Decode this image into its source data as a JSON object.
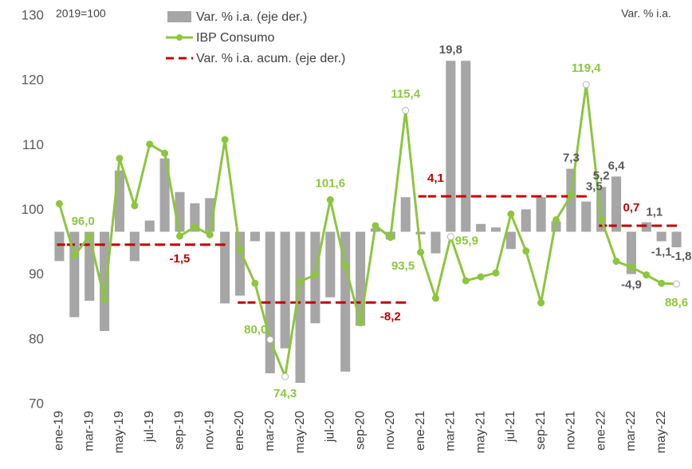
{
  "chart_data": {
    "type": "combo",
    "subtitle": "2019=100",
    "y2_title": "Var. % i.a.",
    "categories": [
      "ene-19",
      null,
      "mar-19",
      null,
      "may-19",
      null,
      "jul-19",
      null,
      "sep-19",
      null,
      "nov-19",
      null,
      "ene-20",
      null,
      "mar-20",
      null,
      "may-20",
      null,
      "jul-20",
      null,
      "sep-20",
      null,
      "nov-20",
      null,
      "ene-21",
      null,
      "mar-21",
      null,
      "may-21",
      null,
      "jul-21",
      null,
      "sep-21",
      null,
      "nov-21",
      null,
      "ene-22",
      null,
      "mar-22",
      null,
      "may-22",
      null
    ],
    "ylim": [
      70,
      130
    ],
    "yticks": [
      70,
      80,
      90,
      100,
      110,
      120,
      130
    ],
    "y2lim": [
      -20,
      25
    ],
    "grid": false,
    "series": [
      {
        "name": "Var. % i.a. (eje der.)",
        "type": "bar",
        "axis": "y2",
        "color": "#a6a6a6",
        "values": [
          -3.4,
          -9.9,
          -8.0,
          -11.5,
          7.1,
          -3.4,
          1.3,
          8.5,
          4.6,
          3.3,
          3.9,
          -8.3,
          -7.4,
          -1.1,
          -16.4,
          -13.5,
          -17.5,
          -10.6,
          -7.6,
          -16.2,
          -10.9,
          0.4,
          -0.9,
          4.0,
          -0.3,
          -2.5,
          19.8,
          19.8,
          0.9,
          0.5,
          -2.0,
          2.6,
          4.0,
          1.2,
          7.3,
          3.5,
          5.2,
          6.4,
          -4.9,
          1.1,
          -1.1,
          -1.8
        ],
        "value_labels": [
          null,
          null,
          null,
          null,
          null,
          null,
          null,
          null,
          null,
          null,
          null,
          null,
          null,
          null,
          null,
          null,
          null,
          null,
          null,
          null,
          null,
          null,
          null,
          null,
          null,
          null,
          "19,8",
          null,
          null,
          null,
          null,
          null,
          null,
          null,
          "7,3",
          "3,5",
          "5,2",
          "6,4",
          "-4,9",
          "1,1",
          "-1,1",
          "-1,8"
        ]
      },
      {
        "name": "IBP Consumo",
        "type": "line",
        "color": "#8cc63e",
        "values": [
          101.0,
          93.0,
          96.0,
          86.2,
          108.0,
          100.7,
          110.2,
          108.8,
          96.0,
          97.4,
          96.2,
          110.9,
          93.8,
          88.7,
          80.0,
          74.3,
          89.0,
          90.0,
          101.6,
          91.4,
          82.6,
          97.6,
          95.8,
          115.4,
          93.5,
          86.4,
          95.9,
          89.1,
          89.7,
          90.3,
          99.4,
          93.7,
          85.7,
          98.5,
          102.3,
          119.4,
          98.6,
          92.1,
          91.2,
          90.0,
          88.7,
          88.6
        ],
        "value_labels": [
          null,
          null,
          "96,0",
          null,
          null,
          null,
          null,
          null,
          null,
          null,
          null,
          null,
          null,
          null,
          "80,0",
          "74,3",
          null,
          null,
          "101,6",
          null,
          null,
          null,
          null,
          "115,4",
          "93,5",
          null,
          "95,9",
          null,
          null,
          null,
          null,
          null,
          null,
          null,
          null,
          "119,4",
          null,
          null,
          null,
          null,
          null,
          "88,6"
        ]
      },
      {
        "name": "Var. % i.a. acum. (eje der.)",
        "type": "step",
        "axis": "y2",
        "color": "#c00000",
        "values": [
          -1.5,
          -1.5,
          -1.5,
          -1.5,
          -1.5,
          -1.5,
          -1.5,
          -1.5,
          -1.5,
          -1.5,
          -1.5,
          -1.5,
          -8.2,
          -8.2,
          -8.2,
          -8.2,
          -8.2,
          -8.2,
          -8.2,
          -8.2,
          -8.2,
          -8.2,
          -8.2,
          -8.2,
          4.1,
          4.1,
          4.1,
          4.1,
          4.1,
          4.1,
          4.1,
          4.1,
          4.1,
          4.1,
          4.1,
          4.1,
          0.7,
          0.7,
          0.7,
          0.7,
          0.7,
          0.7
        ],
        "value_labels": [
          null,
          null,
          null,
          null,
          null,
          null,
          null,
          null,
          "-1,5",
          null,
          null,
          null,
          null,
          null,
          null,
          null,
          null,
          null,
          null,
          null,
          null,
          null,
          "-8,2",
          null,
          null,
          "4,1",
          null,
          null,
          null,
          null,
          null,
          null,
          null,
          null,
          null,
          null,
          null,
          null,
          "0,7",
          null,
          null,
          null
        ]
      }
    ]
  }
}
